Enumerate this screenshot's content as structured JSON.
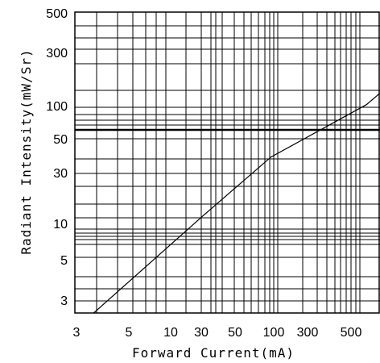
{
  "chart_data": {
    "type": "line",
    "title": "",
    "xlabel": "Forward Current(mA)",
    "ylabel": "Radiant Intensity(mW/Sr)",
    "x_scale": "log",
    "y_scale": "log",
    "x_tick_labels": [
      "3",
      "5",
      "10",
      "30",
      "50",
      "100",
      "300",
      "500"
    ],
    "y_tick_labels": [
      "500",
      "300",
      "100",
      "50",
      "30",
      "10",
      "5",
      "3"
    ],
    "grid": true,
    "series": [
      {
        "name": "",
        "color": "#000000",
        "points": [
          {
            "x": 4.2,
            "y": 2.5
          },
          {
            "x": 30,
            "y": 14
          },
          {
            "x": 100,
            "y": 39
          },
          {
            "x": 550,
            "y": 98
          },
          {
            "x": 700,
            "y": 120
          }
        ]
      }
    ]
  }
}
